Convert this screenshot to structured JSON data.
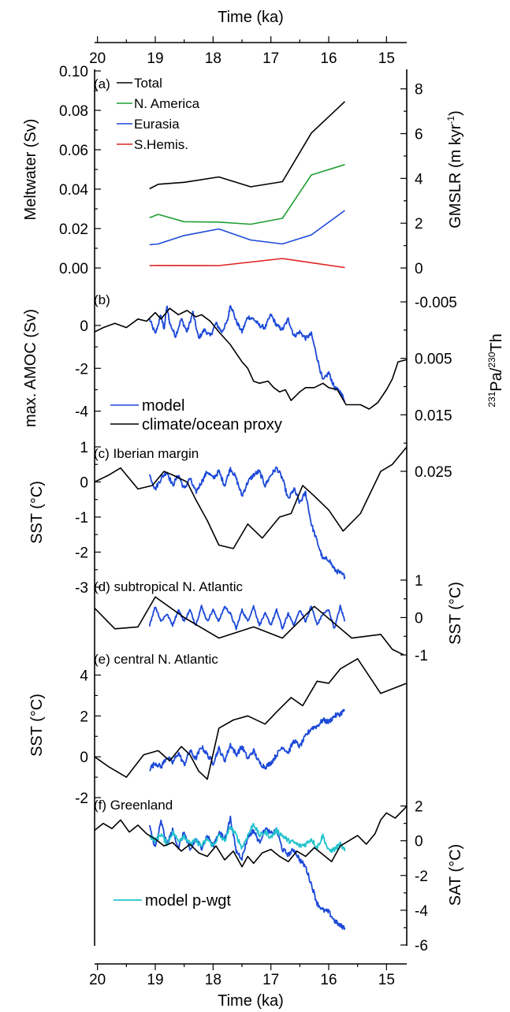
{
  "figure": {
    "top_xlabel": "Time (ka)",
    "bottom_xlabel": "Time (ka)",
    "x_ticks": [
      20,
      19,
      18,
      17,
      16,
      15
    ],
    "x_tick_labels": [
      "20",
      "19",
      "18",
      "17",
      "16",
      "15"
    ],
    "x_range": [
      20.05,
      14.65
    ]
  },
  "chart_data": [
    {
      "id": "a",
      "type": "line",
      "panel_label": "(a)",
      "ylabel": "Meltwater (Sv)",
      "ylim": [
        0,
        0.1
      ],
      "yticks": [
        0,
        0.02,
        0.04,
        0.06,
        0.08,
        0.1
      ],
      "ytick_labels": [
        "0.00",
        "0.02",
        "0.04",
        "0.06",
        "0.08",
        "0.10"
      ],
      "ylabel_right_prefix": "GMSLR (m kyr",
      "ylabel_right_sup": "-1",
      "ylabel_right_suffix": ")",
      "ylim_right": [
        0,
        8.8
      ],
      "yticks_right": [
        0,
        2,
        4,
        6,
        8
      ],
      "ytick_labels_right": [
        "0",
        "2",
        "4",
        "6",
        "8"
      ],
      "legend": "inline-labels",
      "series": [
        {
          "name": "Total",
          "color": "#000000",
          "x": [
            19.1,
            18.95,
            18.5,
            17.9,
            17.35,
            16.8,
            16.3,
            15.72
          ],
          "y": [
            0.0402,
            0.0425,
            0.0435,
            0.0462,
            0.0412,
            0.0438,
            0.0685,
            0.0845
          ]
        },
        {
          "name": "N. America",
          "color": "#1f9e33",
          "x": [
            19.1,
            18.95,
            18.5,
            17.9,
            17.35,
            16.8,
            16.3,
            15.72
          ],
          "y": [
            0.0255,
            0.0272,
            0.0235,
            0.0233,
            0.0222,
            0.0252,
            0.0472,
            0.0525
          ]
        },
        {
          "name": "Eurasia",
          "color": "#1c49d8",
          "x": [
            19.1,
            18.95,
            18.5,
            17.9,
            17.35,
            16.8,
            16.3,
            15.72
          ],
          "y": [
            0.0118,
            0.0122,
            0.0165,
            0.0198,
            0.0142,
            0.0122,
            0.0168,
            0.0292
          ]
        },
        {
          "name": "S.Hemis.",
          "color": "#e02020",
          "x": [
            19.1,
            18.95,
            17.9,
            16.8,
            15.72
          ],
          "y": [
            0.0012,
            0.0013,
            0.0012,
            0.0048,
            0.0002
          ]
        }
      ]
    },
    {
      "id": "b",
      "type": "line",
      "panel_label": "(b)",
      "ylabel": "max. AMOC (Sv)",
      "ylim": [
        -4.6,
        1.1
      ],
      "yticks": [
        -4,
        -2,
        0
      ],
      "ytick_labels": [
        "-4",
        "-2",
        "0"
      ],
      "ylabel_right_sup1": "231",
      "ylabel_right_mid": "Pa/",
      "ylabel_right_sup2": "230",
      "ylabel_right_end": "Th",
      "ylim_right": [
        -0.005,
        0.025
      ],
      "yticks_right": [
        -0.005,
        0.005,
        0.015,
        0.025
      ],
      "ytick_labels_right": [
        "-0.005",
        "0.005",
        "0.015",
        "0.025"
      ],
      "right_axis_inverted": true,
      "legend_position": "bottom-left",
      "series": [
        {
          "name": "model",
          "color": "#1c49d8",
          "noisy": true,
          "x": [
            19.1,
            19.0,
            18.9,
            18.85,
            18.8,
            18.75,
            18.65,
            18.55,
            18.45,
            18.35,
            18.25,
            18.15,
            18.05,
            17.95,
            17.85,
            17.75,
            17.7,
            17.6,
            17.5,
            17.4,
            17.3,
            17.2,
            17.1,
            17.0,
            16.9,
            16.8,
            16.7,
            16.6,
            16.5,
            16.4,
            16.3,
            16.2,
            16.1,
            16.0,
            15.9,
            15.8,
            15.72
          ],
          "y": [
            0.3,
            -0.4,
            0.5,
            -0.2,
            0.9,
            0.1,
            -0.5,
            0.3,
            -0.3,
            0.6,
            -0.6,
            -0.2,
            -0.5,
            0.1,
            -0.3,
            0.2,
            1.0,
            0.2,
            -0.3,
            0.4,
            0.3,
            0.0,
            -0.1,
            0.5,
            0.0,
            -0.2,
            0.3,
            -0.5,
            -0.3,
            -0.6,
            -0.4,
            -1.5,
            -2.6,
            -2.2,
            -2.9,
            -3.1,
            -3.5
          ]
        },
        {
          "name": "climate/ocean proxy",
          "color": "#000000",
          "x": [
            20.05,
            19.9,
            19.7,
            19.5,
            19.3,
            19.15,
            19.0,
            18.9,
            18.75,
            18.6,
            18.45,
            18.3,
            18.2,
            18.05,
            17.9,
            17.7,
            17.5,
            17.4,
            17.3,
            17.2,
            17.05,
            16.95,
            16.85,
            16.75,
            16.65,
            16.5,
            16.4,
            16.25,
            16.1,
            16.0,
            15.85,
            15.7,
            15.55,
            15.45,
            15.3,
            15.15,
            15.0,
            14.9,
            14.8,
            14.65
          ],
          "y": [
            -0.3,
            -0.1,
            0.1,
            -0.1,
            0.3,
            0.2,
            0.6,
            0.3,
            0.8,
            0.5,
            0.7,
            0.4,
            0.5,
            0.2,
            -0.3,
            -0.9,
            -1.7,
            -2.0,
            -2.6,
            -2.7,
            -2.6,
            -2.9,
            -3.1,
            -3.0,
            -3.5,
            -3.1,
            -2.9,
            -2.9,
            -2.7,
            -2.9,
            -3.0,
            -3.7,
            -3.7,
            -3.7,
            -3.9,
            -3.6,
            -3.0,
            -2.5,
            -1.7,
            -1.6
          ]
        }
      ]
    },
    {
      "id": "c",
      "type": "line",
      "panel_label": "(c) Iberian margin",
      "ylabel": "SST (°C)",
      "ylim": [
        -3,
        1
      ],
      "yticks": [
        -3,
        -2,
        -1,
        0,
        1
      ],
      "ytick_labels": [
        "-3",
        "-2",
        "-1",
        "0",
        "1"
      ],
      "series": [
        {
          "name": "model",
          "color": "#1c49d8",
          "noisy": true,
          "x": [
            19.1,
            19.0,
            18.9,
            18.8,
            18.7,
            18.6,
            18.5,
            18.4,
            18.3,
            18.2,
            18.1,
            18.0,
            17.9,
            17.8,
            17.7,
            17.6,
            17.5,
            17.4,
            17.3,
            17.2,
            17.1,
            17.0,
            16.9,
            16.8,
            16.7,
            16.6,
            16.5,
            16.4,
            16.3,
            16.2,
            16.1,
            16.0,
            15.9,
            15.8,
            15.72
          ],
          "y": [
            0.2,
            -0.2,
            0.1,
            0.3,
            -0.1,
            0.2,
            -0.2,
            0.1,
            -0.3,
            0.0,
            0.3,
            0.1,
            0.3,
            -0.1,
            0.4,
            0.1,
            -0.4,
            0.0,
            0.2,
            0.3,
            -0.1,
            0.2,
            0.4,
            0.1,
            -0.5,
            -0.2,
            -0.6,
            -0.3,
            -1.2,
            -1.7,
            -2.2,
            -2.2,
            -2.5,
            -2.6,
            -2.7
          ]
        },
        {
          "name": "climate/ocean proxy",
          "color": "#000000",
          "x": [
            20.05,
            19.8,
            19.6,
            19.3,
            19.05,
            18.85,
            18.7,
            18.45,
            18.3,
            18.1,
            17.9,
            17.65,
            17.4,
            17.15,
            16.85,
            16.65,
            16.45,
            16.25,
            16.0,
            15.75,
            15.45,
            15.1,
            14.9,
            14.65
          ],
          "y": [
            0.0,
            0.2,
            0.4,
            -0.2,
            -0.1,
            0.3,
            0.2,
            0.0,
            -0.5,
            -1.1,
            -1.8,
            -1.9,
            -1.2,
            -1.6,
            -1.0,
            -0.9,
            -0.1,
            -0.4,
            -0.8,
            -1.4,
            -0.9,
            0.3,
            0.5,
            1.0
          ]
        }
      ]
    },
    {
      "id": "d",
      "type": "line",
      "panel_label": "(d) subtropical N. Atlantic",
      "ylabel_right": "SST (°C)",
      "ylim": [
        -1,
        1
      ],
      "yticks": [
        -1,
        0,
        1
      ],
      "ytick_labels": [
        "-1",
        "0",
        "1"
      ],
      "series": [
        {
          "name": "model",
          "color": "#1c49d8",
          "noisy": true,
          "x": [
            19.1,
            19.0,
            18.9,
            18.8,
            18.7,
            18.6,
            18.5,
            18.4,
            18.3,
            18.2,
            18.1,
            18.0,
            17.9,
            17.8,
            17.7,
            17.6,
            17.5,
            17.4,
            17.3,
            17.2,
            17.1,
            17.0,
            16.9,
            16.8,
            16.7,
            16.6,
            16.5,
            16.4,
            16.3,
            16.2,
            16.1,
            16.0,
            15.9,
            15.8,
            15.72
          ],
          "y": [
            -0.2,
            0.3,
            -0.1,
            0.1,
            -0.2,
            0.2,
            -0.1,
            0.2,
            -0.2,
            0.3,
            -0.1,
            0.2,
            -0.1,
            0.3,
            0.1,
            -0.3,
            0.2,
            -0.1,
            0.3,
            -0.2,
            0.1,
            -0.2,
            0.2,
            -0.3,
            0.1,
            -0.2,
            0.2,
            -0.1,
            0.3,
            -0.2,
            0.1,
            0.2,
            -0.3,
            0.3,
            -0.1
          ]
        },
        {
          "name": "climate/ocean proxy",
          "color": "#000000",
          "x": [
            20.05,
            19.7,
            19.3,
            19.0,
            18.5,
            17.9,
            17.3,
            16.8,
            16.25,
            15.6,
            15.1,
            14.9,
            14.7
          ],
          "y": [
            0.25,
            -0.3,
            -0.25,
            0.55,
            0.0,
            -0.55,
            -0.25,
            -0.55,
            0.3,
            -0.55,
            -0.45,
            -0.85,
            -1.0
          ]
        }
      ]
    },
    {
      "id": "e",
      "type": "line",
      "panel_label": "(e) central N. Atlantic",
      "ylabel": "SST (°C)",
      "ylim": [
        -2,
        5.1
      ],
      "yticks": [
        -2,
        0,
        2,
        4
      ],
      "ytick_labels": [
        "-2",
        "0",
        "2",
        "4"
      ],
      "series": [
        {
          "name": "model",
          "color": "#1c49d8",
          "noisy": true,
          "x": [
            19.1,
            19.0,
            18.9,
            18.8,
            18.7,
            18.6,
            18.5,
            18.4,
            18.3,
            18.2,
            18.1,
            18.0,
            17.9,
            17.8,
            17.7,
            17.6,
            17.5,
            17.4,
            17.3,
            17.2,
            17.1,
            17.0,
            16.9,
            16.8,
            16.7,
            16.6,
            16.5,
            16.4,
            16.3,
            16.2,
            16.1,
            16.0,
            15.9,
            15.8,
            15.72
          ],
          "y": [
            -0.6,
            -0.3,
            -0.5,
            0.0,
            -0.3,
            0.2,
            -0.4,
            0.3,
            -0.1,
            0.5,
            0.1,
            -0.3,
            0.4,
            -0.2,
            0.6,
            0.1,
            0.5,
            -0.1,
            0.3,
            -0.3,
            -0.5,
            -0.3,
            0.1,
            0.5,
            0.2,
            0.8,
            0.5,
            1.0,
            1.4,
            1.5,
            1.8,
            1.7,
            2.0,
            2.1,
            2.3
          ]
        },
        {
          "name": "climate/ocean proxy",
          "color": "#000000",
          "x": [
            20.05,
            19.8,
            19.5,
            19.2,
            18.95,
            18.75,
            18.55,
            18.4,
            18.25,
            18.1,
            17.9,
            17.65,
            17.4,
            17.1,
            16.9,
            16.65,
            16.45,
            16.2,
            16.0,
            15.8,
            15.5,
            15.1,
            14.65
          ],
          "y": [
            0.0,
            -0.5,
            -1.0,
            0.1,
            0.3,
            -0.2,
            0.5,
            0.1,
            -0.7,
            -1.1,
            1.4,
            1.8,
            2.0,
            1.6,
            2.2,
            2.9,
            2.5,
            3.7,
            3.6,
            4.3,
            4.8,
            3.1,
            3.6
          ]
        }
      ]
    },
    {
      "id": "f",
      "type": "line",
      "panel_label": "(f) Greenland",
      "ylabel_right": "SAT (°C)",
      "ylim": [
        -6,
        2.3
      ],
      "yticks": [
        -6,
        -4,
        -2,
        0,
        2
      ],
      "ytick_labels": [
        "-6",
        "-4",
        "-2",
        "0",
        "2"
      ],
      "legend_position": "middle-left",
      "series": [
        {
          "name": "model",
          "color": "#1c49d8",
          "noisy": true,
          "x": [
            19.1,
            19.0,
            18.9,
            18.8,
            18.7,
            18.6,
            18.5,
            18.4,
            18.3,
            18.2,
            18.1,
            18.0,
            17.9,
            17.8,
            17.7,
            17.6,
            17.5,
            17.4,
            17.3,
            17.2,
            17.1,
            17.0,
            16.9,
            16.8,
            16.7,
            16.6,
            16.5,
            16.4,
            16.3,
            16.2,
            16.1,
            16.0,
            15.9,
            15.8,
            15.72
          ],
          "y": [
            0.8,
            -0.4,
            1.1,
            -0.2,
            0.6,
            -0.4,
            0.5,
            -0.6,
            0.1,
            -0.4,
            0.3,
            -0.3,
            0.5,
            0.1,
            1.3,
            -0.6,
            -1.0,
            0.2,
            0.6,
            -0.1,
            0.7,
            0.4,
            0.6,
            -0.5,
            -0.8,
            -0.5,
            -1.1,
            -1.5,
            -2.5,
            -3.6,
            -4.0,
            -4.1,
            -4.6,
            -4.9,
            -5.0
          ]
        },
        {
          "name": "model p-wgt",
          "color": "#22c4cc",
          "noisy": true,
          "x": [
            19.1,
            19.0,
            18.9,
            18.8,
            18.7,
            18.6,
            18.5,
            18.4,
            18.3,
            18.2,
            18.1,
            18.0,
            17.9,
            17.8,
            17.7,
            17.6,
            17.5,
            17.4,
            17.3,
            17.2,
            17.1,
            17.0,
            16.9,
            16.8,
            16.7,
            16.6,
            16.5,
            16.4,
            16.3,
            16.2,
            16.1,
            16.0,
            15.9,
            15.8,
            15.72
          ],
          "y": [
            0.3,
            0.0,
            0.4,
            -0.2,
            0.5,
            0.0,
            0.3,
            -0.2,
            0.0,
            -0.3,
            0.1,
            -0.3,
            0.3,
            0.0,
            0.8,
            0.3,
            -0.4,
            0.3,
            1.0,
            0.3,
            0.5,
            0.2,
            0.6,
            0.3,
            0.0,
            -0.1,
            -0.3,
            -0.2,
            0.1,
            -0.4,
            0.3,
            -0.6,
            -0.5,
            -0.2,
            -0.6
          ]
        },
        {
          "name": "climate/ocean proxy",
          "color": "#000000",
          "x": [
            20.05,
            19.9,
            19.75,
            19.6,
            19.45,
            19.3,
            19.15,
            19.0,
            18.85,
            18.7,
            18.55,
            18.4,
            18.25,
            18.1,
            17.95,
            17.8,
            17.65,
            17.5,
            17.4,
            17.3,
            17.15,
            17.0,
            16.85,
            16.7,
            16.55,
            16.4,
            16.25,
            16.1,
            15.95,
            15.8,
            15.65,
            15.5,
            15.35,
            15.2,
            15.1,
            15.0,
            14.85,
            14.7,
            14.65
          ],
          "y": [
            0.6,
            1.0,
            0.7,
            1.2,
            0.5,
            0.9,
            0.4,
            0.1,
            -0.3,
            -0.1,
            -0.6,
            -0.2,
            -0.7,
            -0.9,
            -0.3,
            -1.1,
            -0.6,
            -1.5,
            -0.9,
            -1.3,
            -0.7,
            -0.5,
            -0.9,
            -1.2,
            -0.6,
            -0.9,
            -0.4,
            -0.8,
            -1.2,
            -0.3,
            0.0,
            0.3,
            -0.2,
            0.4,
            1.2,
            1.6,
            1.3,
            1.8,
            2.0
          ]
        }
      ]
    }
  ]
}
